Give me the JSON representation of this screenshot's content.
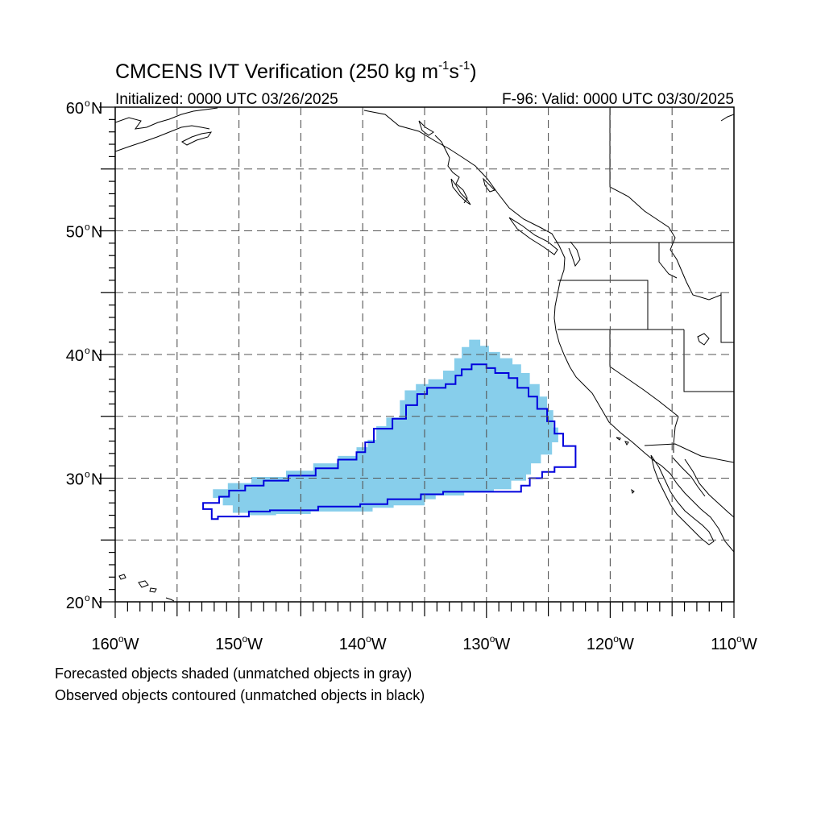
{
  "title": {
    "main": "CMCENS IVT Verification (250 kg m",
    "sup1": "-1",
    "mid": "s",
    "sup2": "-1",
    "end": ")"
  },
  "subtitle_left": "Initialized: 0000 UTC 03/26/2025",
  "subtitle_right": "F-96: Valid: 0000 UTC 03/30/2025",
  "lat_labels": [
    "60",
    "50",
    "40",
    "30",
    "20"
  ],
  "lon_labels": [
    "160",
    "150",
    "140",
    "130",
    "120",
    "110"
  ],
  "degree_symbol": "o",
  "lat_suffix": "N",
  "lon_suffix": "W",
  "map_extent": {
    "lon": [
      -160,
      -110
    ],
    "lat": [
      20,
      60
    ]
  },
  "colors": {
    "forecast_fill": "#87ceeb",
    "observed_contour": "#0000dd",
    "coastline": "#000000",
    "grid": "#555555"
  },
  "forecast_object": {
    "fill": "#87ceeb",
    "polygon_lonlat": [
      [
        -152.1,
        29.1
      ],
      [
        -150.9,
        29.1
      ],
      [
        -150.9,
        29.6
      ],
      [
        -149.0,
        29.6
      ],
      [
        -149.0,
        30.1
      ],
      [
        -146.2,
        30.1
      ],
      [
        -146.2,
        30.6
      ],
      [
        -144.0,
        30.6
      ],
      [
        -144.0,
        31.2
      ],
      [
        -142.0,
        31.2
      ],
      [
        -142.0,
        31.8
      ],
      [
        -140.5,
        31.8
      ],
      [
        -140.5,
        32.5
      ],
      [
        -139.6,
        32.5
      ],
      [
        -139.6,
        33.1
      ],
      [
        -138.9,
        33.1
      ],
      [
        -138.9,
        34.2
      ],
      [
        -138.1,
        34.2
      ],
      [
        -138.1,
        34.9
      ],
      [
        -137.0,
        34.9
      ],
      [
        -137.0,
        36.3
      ],
      [
        -136.6,
        36.3
      ],
      [
        -136.6,
        37.1
      ],
      [
        -135.7,
        37.1
      ],
      [
        -135.7,
        37.6
      ],
      [
        -134.7,
        37.6
      ],
      [
        -134.7,
        38.0
      ],
      [
        -133.5,
        38.0
      ],
      [
        -133.5,
        38.7
      ],
      [
        -132.6,
        38.7
      ],
      [
        -132.6,
        39.7
      ],
      [
        -132.0,
        39.7
      ],
      [
        -132.0,
        40.6
      ],
      [
        -131.4,
        40.6
      ],
      [
        -131.4,
        41.2
      ],
      [
        -130.5,
        41.2
      ],
      [
        -130.5,
        40.7
      ],
      [
        -129.8,
        40.7
      ],
      [
        -129.8,
        40.2
      ],
      [
        -128.9,
        40.2
      ],
      [
        -128.9,
        39.7
      ],
      [
        -127.9,
        39.7
      ],
      [
        -127.9,
        39.2
      ],
      [
        -127.2,
        39.2
      ],
      [
        -127.2,
        38.5
      ],
      [
        -126.5,
        38.5
      ],
      [
        -126.5,
        37.6
      ],
      [
        -125.7,
        37.6
      ],
      [
        -125.7,
        36.6
      ],
      [
        -125.1,
        36.6
      ],
      [
        -125.1,
        35.5
      ],
      [
        -124.6,
        35.5
      ],
      [
        -124.6,
        34.1
      ],
      [
        -124.2,
        34.1
      ],
      [
        -124.2,
        32.9
      ],
      [
        -124.7,
        32.9
      ],
      [
        -124.7,
        31.9
      ],
      [
        -125.6,
        31.9
      ],
      [
        -125.6,
        31.2
      ],
      [
        -126.4,
        31.2
      ],
      [
        -126.4,
        30.3
      ],
      [
        -126.8,
        30.3
      ],
      [
        -126.8,
        29.8
      ],
      [
        -128.0,
        29.8
      ],
      [
        -128.0,
        29.1
      ],
      [
        -129.4,
        29.1
      ],
      [
        -129.4,
        28.9
      ],
      [
        -131.8,
        28.9
      ],
      [
        -131.8,
        28.6
      ],
      [
        -134.1,
        28.6
      ],
      [
        -134.1,
        28.3
      ],
      [
        -135.0,
        28.3
      ],
      [
        -135.0,
        27.8
      ],
      [
        -137.5,
        27.8
      ],
      [
        -137.5,
        27.6
      ],
      [
        -139.2,
        27.6
      ],
      [
        -139.2,
        27.3
      ],
      [
        -144.2,
        27.3
      ],
      [
        -144.2,
        27.1
      ],
      [
        -147.0,
        27.1
      ],
      [
        -147.0,
        27.0
      ],
      [
        -149.2,
        27.0
      ],
      [
        -149.2,
        27.2
      ],
      [
        -150.5,
        27.2
      ],
      [
        -150.5,
        27.8
      ],
      [
        -151.3,
        27.8
      ],
      [
        -151.3,
        28.4
      ],
      [
        -152.1,
        28.4
      ]
    ]
  },
  "observed_object": {
    "color": "#0000dd",
    "polygon_lonlat": [
      [
        -152.5,
        28.0
      ],
      [
        -151.6,
        28.0
      ],
      [
        -151.6,
        28.5
      ],
      [
        -150.8,
        28.5
      ],
      [
        -150.8,
        29.0
      ],
      [
        -149.5,
        29.0
      ],
      [
        -149.5,
        29.4
      ],
      [
        -148.0,
        29.4
      ],
      [
        -148.0,
        29.8
      ],
      [
        -146.0,
        29.8
      ],
      [
        -146.0,
        30.2
      ],
      [
        -143.8,
        30.2
      ],
      [
        -143.8,
        30.8
      ],
      [
        -142.0,
        30.8
      ],
      [
        -142.0,
        31.5
      ],
      [
        -140.5,
        31.5
      ],
      [
        -140.5,
        32.1
      ],
      [
        -139.8,
        32.1
      ],
      [
        -139.8,
        32.9
      ],
      [
        -139.1,
        32.9
      ],
      [
        -139.1,
        34.0
      ],
      [
        -137.6,
        34.0
      ],
      [
        -137.6,
        34.8
      ],
      [
        -136.5,
        34.8
      ],
      [
        -136.5,
        35.9
      ],
      [
        -135.6,
        35.9
      ],
      [
        -135.6,
        36.8
      ],
      [
        -134.8,
        36.8
      ],
      [
        -134.8,
        37.3
      ],
      [
        -133.3,
        37.3
      ],
      [
        -133.3,
        37.6
      ],
      [
        -132.5,
        37.6
      ],
      [
        -132.5,
        38.3
      ],
      [
        -132.0,
        38.3
      ],
      [
        -132.0,
        38.8
      ],
      [
        -131.2,
        38.8
      ],
      [
        -131.2,
        39.2
      ],
      [
        -130.0,
        39.2
      ],
      [
        -130.0,
        38.9
      ],
      [
        -129.3,
        38.9
      ],
      [
        -129.3,
        38.5
      ],
      [
        -128.2,
        38.5
      ],
      [
        -128.2,
        38.1
      ],
      [
        -127.5,
        38.1
      ],
      [
        -127.5,
        37.3
      ],
      [
        -126.6,
        37.3
      ],
      [
        -126.6,
        36.6
      ],
      [
        -125.9,
        36.6
      ],
      [
        -125.9,
        35.6
      ],
      [
        -125.1,
        35.6
      ],
      [
        -125.1,
        34.6
      ],
      [
        -124.5,
        34.6
      ],
      [
        -124.5,
        33.6
      ],
      [
        -123.8,
        33.6
      ],
      [
        -123.8,
        32.6
      ],
      [
        -122.8,
        32.6
      ],
      [
        -122.8,
        30.9
      ],
      [
        -124.5,
        30.9
      ],
      [
        -124.5,
        30.5
      ],
      [
        -125.5,
        30.5
      ],
      [
        -125.5,
        30.0
      ],
      [
        -126.5,
        30.0
      ],
      [
        -126.5,
        29.4
      ],
      [
        -127.2,
        29.4
      ],
      [
        -127.2,
        28.9
      ],
      [
        -133.5,
        28.9
      ],
      [
        -133.5,
        28.7
      ],
      [
        -135.3,
        28.7
      ],
      [
        -135.3,
        28.3
      ],
      [
        -138.0,
        28.3
      ],
      [
        -138.0,
        27.9
      ],
      [
        -140.2,
        27.9
      ],
      [
        -140.2,
        27.7
      ],
      [
        -143.6,
        27.7
      ],
      [
        -143.6,
        27.4
      ],
      [
        -147.5,
        27.4
      ],
      [
        -147.5,
        27.3
      ],
      [
        -149.2,
        27.3
      ],
      [
        -149.2,
        26.9
      ],
      [
        -151.7,
        26.9
      ],
      [
        -151.7,
        26.7
      ],
      [
        -152.2,
        26.7
      ],
      [
        -152.2,
        27.1
      ],
      [
        -152.2,
        27.5
      ],
      [
        -152.9,
        27.5
      ],
      [
        -152.9,
        28.0
      ]
    ]
  },
  "footnote_1": "Forecasted objects shaded (unmatched objects in gray)",
  "footnote_2": "Observed objects contoured (unmatched objects in black)"
}
